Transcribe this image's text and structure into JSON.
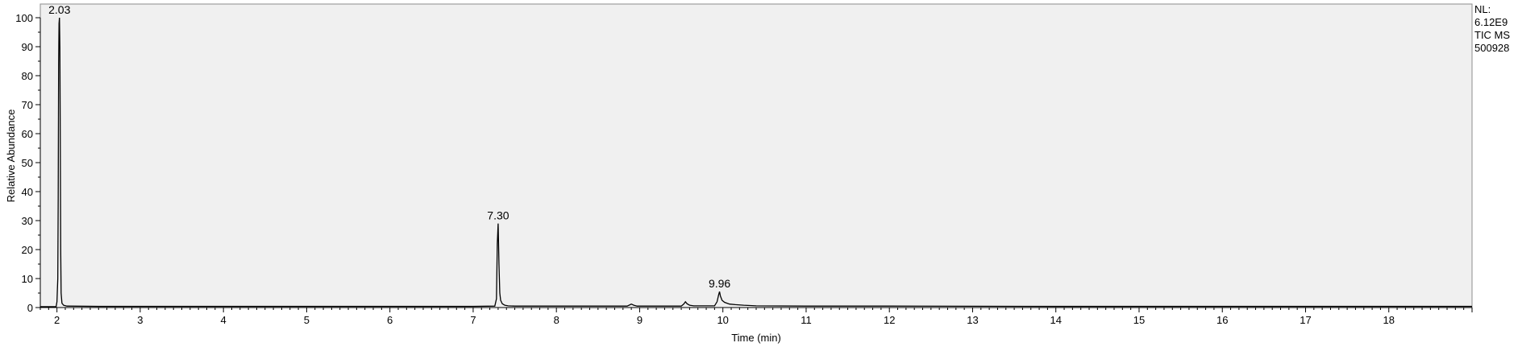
{
  "chart_data": {
    "type": "line",
    "xlabel": "Time (min)",
    "ylabel": "Relative Abundance",
    "xlim": [
      1.8,
      19.0
    ],
    "ylim": [
      0,
      100
    ],
    "x_ticks": [
      2,
      3,
      4,
      5,
      6,
      7,
      8,
      9,
      10,
      11,
      12,
      13,
      14,
      15,
      16,
      17,
      18
    ],
    "y_ticks": [
      0,
      10,
      20,
      30,
      40,
      50,
      60,
      70,
      80,
      90,
      100
    ],
    "grid": false,
    "plot_background": "#f0f0f0",
    "line_color": "#000000",
    "info": [
      "NL:",
      "6.12E9",
      "TIC  MS",
      "500928"
    ],
    "peak_labels": [
      {
        "x": 2.03,
        "y": 100,
        "label": "2.03"
      },
      {
        "x": 7.3,
        "y": 29,
        "label": "7.30"
      },
      {
        "x": 9.96,
        "y": 5.5,
        "label": "9.96"
      }
    ],
    "series": [
      {
        "x": [
          1.8,
          1.99,
          2.0,
          2.01,
          2.015,
          2.02,
          2.025,
          2.03,
          2.035,
          2.04,
          2.045,
          2.05,
          2.06,
          2.08,
          2.12,
          2.5,
          3.0,
          4.0,
          5.0,
          6.0,
          7.0,
          7.26,
          7.28,
          7.29,
          7.3,
          7.31,
          7.32,
          7.33,
          7.35,
          7.38,
          7.42,
          7.5,
          8.0,
          8.85,
          8.88,
          8.9,
          8.93,
          8.97,
          9.3,
          9.5,
          9.53,
          9.55,
          9.57,
          9.6,
          9.65,
          9.9,
          9.93,
          9.95,
          9.96,
          9.97,
          9.99,
          10.02,
          10.08,
          10.15,
          10.25,
          10.4,
          11.0,
          12.0,
          14.0,
          16.0,
          18.0,
          19.0
        ],
        "y": [
          0.3,
          0.3,
          2,
          10,
          38,
          84,
          98,
          100,
          90,
          57,
          20,
          5,
          1.5,
          0.8,
          0.5,
          0.4,
          0.4,
          0.4,
          0.4,
          0.4,
          0.4,
          0.5,
          3,
          22,
          29,
          15,
          5,
          2.5,
          1.3,
          0.8,
          0.6,
          0.5,
          0.5,
          0.5,
          0.9,
          1.2,
          0.8,
          0.5,
          0.5,
          0.5,
          1.2,
          2,
          1.3,
          0.8,
          0.6,
          0.6,
          2,
          4.5,
          5.5,
          4,
          2.5,
          1.8,
          1.2,
          1.0,
          0.8,
          0.6,
          0.5,
          0.5,
          0.4,
          0.4,
          0.4,
          0.4
        ]
      }
    ]
  }
}
